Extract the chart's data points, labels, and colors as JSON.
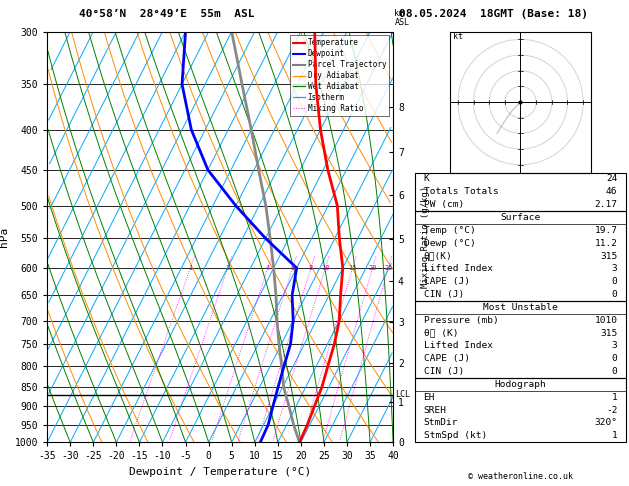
{
  "title_left": "40°58’N  28°49’E  55m  ASL",
  "title_right": "08.05.2024  18GMT (Base: 18)",
  "xlabel": "Dewpoint / Temperature (°C)",
  "ylabel_left": "hPa",
  "pressure_ticks": [
    300,
    350,
    400,
    450,
    500,
    550,
    600,
    650,
    700,
    750,
    800,
    850,
    900,
    950,
    1000
  ],
  "x_min": -35,
  "x_max": 40,
  "skew_factor": 45,
  "temp_data_p": [
    300,
    350,
    400,
    450,
    500,
    550,
    600,
    650,
    700,
    750,
    800,
    850,
    900,
    950,
    1000
  ],
  "temp_data_t": [
    -22.0,
    -16.0,
    -10.0,
    -4.0,
    2.0,
    6.0,
    10.0,
    12.5,
    15.0,
    16.5,
    17.5,
    18.5,
    19.0,
    19.5,
    19.7
  ],
  "dewp_data_p": [
    300,
    350,
    400,
    450,
    500,
    550,
    600,
    650,
    700,
    750,
    800,
    850,
    900,
    950,
    1000
  ],
  "dewp_data_t": [
    -50,
    -45,
    -38,
    -30,
    -20,
    -10,
    0,
    2,
    5,
    7,
    8,
    9,
    10,
    11,
    11.2
  ],
  "parcel_data_p": [
    1000,
    950,
    900,
    870,
    850,
    800,
    750,
    700,
    650,
    600,
    550,
    500,
    450,
    400,
    350,
    300
  ],
  "parcel_data_t": [
    19.7,
    16.5,
    13.5,
    11.5,
    10.2,
    7.5,
    4.5,
    1.5,
    -1.5,
    -5.0,
    -9.0,
    -13.5,
    -19.0,
    -25.0,
    -32.0,
    -40.0
  ],
  "colors": {
    "temperature": "#ff0000",
    "dewpoint": "#0000ff",
    "parcel": "#888888",
    "dry_adiabat": "#ff8c00",
    "wet_adiabat": "#008000",
    "isotherm": "#00aaff",
    "mixing_ratio": "#ff00ff"
  },
  "km_ticks": {
    "0": 1013,
    "1": 900,
    "2": 802,
    "3": 710,
    "4": 628,
    "5": 554,
    "6": 487,
    "7": 428,
    "8": 375
  },
  "mixing_ratio_lines": [
    1,
    2,
    4,
    6,
    8,
    10,
    15,
    20,
    25
  ],
  "lcl_pressure": 870,
  "info_box": {
    "K": 24,
    "Totals_Totals": 46,
    "PW_cm": 2.17,
    "Surface_Temp": 19.7,
    "Surface_Dewp": 11.2,
    "Surface_ThetaE": 315,
    "Surface_LI": 3,
    "Surface_CAPE": 0,
    "Surface_CIN": 0,
    "MU_Pressure": 1010,
    "MU_ThetaE": 315,
    "MU_LI": 3,
    "MU_CAPE": 0,
    "MU_CIN": 0,
    "Hodo_EH": 1,
    "Hodo_SREH": -2,
    "Hodo_StmDir": "320°",
    "Hodo_StmSpd": 1
  },
  "copyright": "© weatheronline.co.uk"
}
